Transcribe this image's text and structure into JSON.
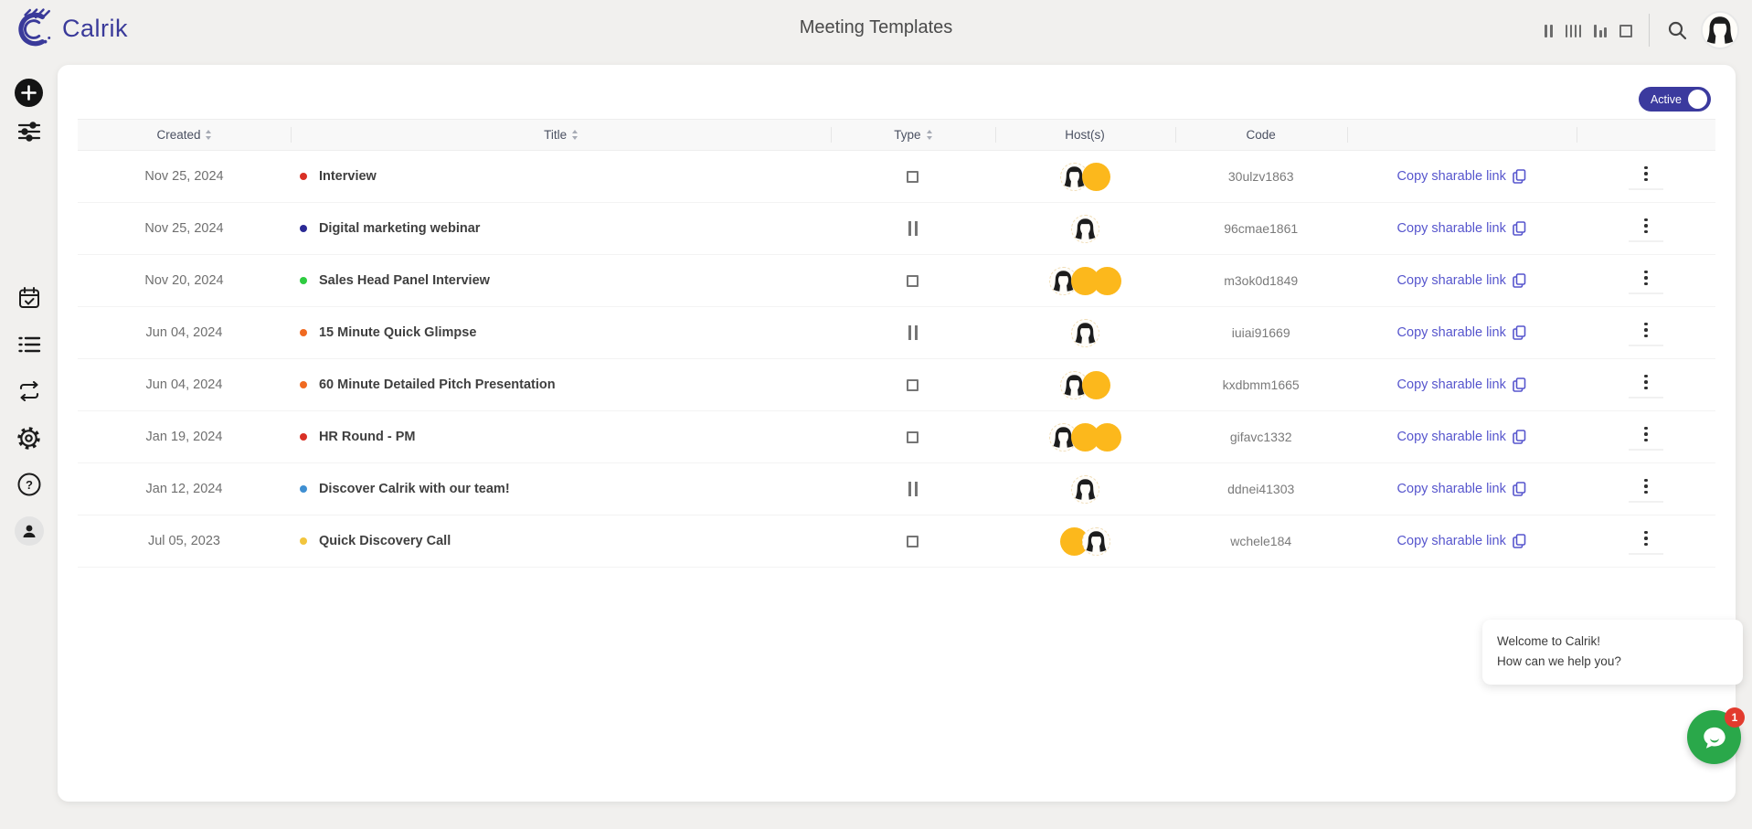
{
  "brand": {
    "name": "Calrik",
    "color": "#3a3a9a",
    "logo_icon": "concentric-c-arcs-icon"
  },
  "header": {
    "title": "Meeting Templates"
  },
  "topbar": {
    "view_icons": [
      "two-bars-view-icon",
      "four-bars-view-icon",
      "bar-chart-view-icon",
      "square-view-icon"
    ],
    "search_icon": "search-icon",
    "avatar_icon": "female-user-avatar"
  },
  "sidebar": {
    "items": [
      {
        "icon": "plus-circle-icon"
      },
      {
        "icon": "sliders-filter-icon"
      },
      {
        "icon": "calendar-check-icon"
      },
      {
        "icon": "list-icon"
      },
      {
        "icon": "repeat-icon"
      },
      {
        "icon": "gear-icon"
      },
      {
        "icon": "help-icon"
      },
      {
        "icon": "person-icon"
      }
    ]
  },
  "filter": {
    "active_toggle_label": "Active",
    "active_toggle_on": true,
    "toggle_color": "#3b3a9e"
  },
  "table": {
    "columns": [
      {
        "label": "Created",
        "sortable": true
      },
      {
        "label": "Title",
        "sortable": true
      },
      {
        "label": "Type",
        "sortable": true
      },
      {
        "label": "Host(s)",
        "sortable": false
      },
      {
        "label": "Code",
        "sortable": false
      },
      {
        "label": "",
        "sortable": false
      },
      {
        "label": "",
        "sortable": false
      }
    ],
    "copy_link_label": "Copy sharable link",
    "rows": [
      {
        "created": "Nov 25, 2024",
        "dot_color": "#d93025",
        "title": "Interview",
        "type_icon": "square-type-icon",
        "hosts": [
          "female-avatar",
          "yellow-avatar"
        ],
        "code": "30ulzv1863"
      },
      {
        "created": "Nov 25, 2024",
        "dot_color": "#2b2a95",
        "title": "Digital marketing webinar",
        "type_icon": "double-bars-type-icon",
        "hosts": [
          "female-avatar"
        ],
        "code": "96cmae1861"
      },
      {
        "created": "Nov 20, 2024",
        "dot_color": "#2ecc40",
        "title": "Sales Head Panel Interview",
        "type_icon": "square-type-icon",
        "hosts": [
          "female-avatar",
          "yellow-avatar",
          "yellow-avatar"
        ],
        "code": "m3ok0d1849"
      },
      {
        "created": "Jun 04, 2024",
        "dot_color": "#f06a21",
        "title": "15 Minute Quick Glimpse",
        "type_icon": "double-bars-type-icon",
        "hosts": [
          "female-avatar"
        ],
        "code": "iuiai91669"
      },
      {
        "created": "Jun 04, 2024",
        "dot_color": "#f06a21",
        "title": "60 Minute Detailed Pitch Presentation",
        "type_icon": "square-type-icon",
        "hosts": [
          "female-avatar",
          "yellow-avatar"
        ],
        "code": "kxdbmm1665"
      },
      {
        "created": "Jan 19, 2024",
        "dot_color": "#d93025",
        "title": "HR Round - PM",
        "type_icon": "square-type-icon",
        "hosts": [
          "female-avatar",
          "yellow-avatar",
          "yellow-avatar"
        ],
        "code": "gifavc1332"
      },
      {
        "created": "Jan 12, 2024",
        "dot_color": "#3f8fd2",
        "title": "Discover Calrik with our team!",
        "type_icon": "double-bars-type-icon",
        "hosts": [
          "female-avatar"
        ],
        "code": "ddnei41303"
      },
      {
        "created": "Jul 05, 2023",
        "dot_color": "#f2c53d",
        "title": "Quick Discovery Call",
        "type_icon": "square-type-icon",
        "hosts": [
          "yellow-avatar",
          "female-avatar"
        ],
        "code": "wchele184"
      }
    ]
  },
  "chat": {
    "line1": "Welcome to Calrik!",
    "line2": "How can we help you?",
    "unread_count": "1",
    "button_color": "#2aa84a",
    "button_icon": "chat-bubble-icon"
  }
}
